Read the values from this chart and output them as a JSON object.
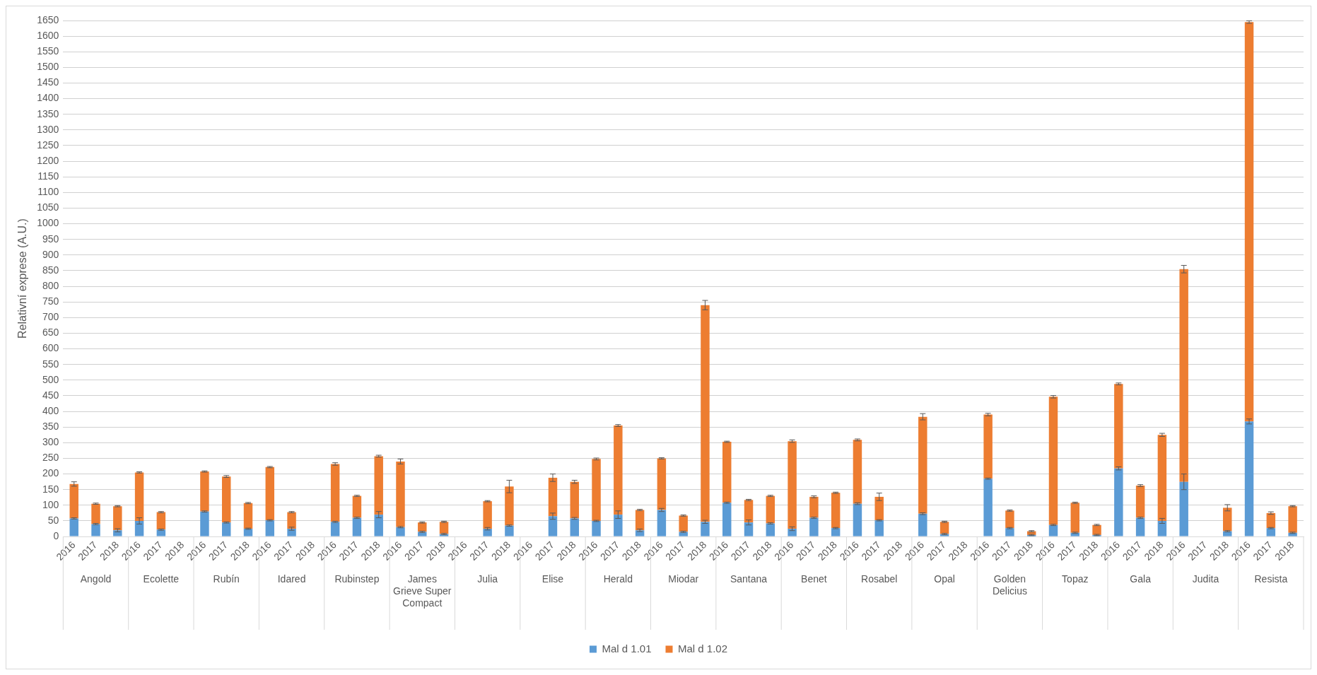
{
  "chart_data": {
    "type": "bar",
    "stacked": true,
    "ylabel": "Relativní exprese (A.U.)",
    "categories": [
      "2016",
      "2017",
      "2018",
      "2016",
      "2017",
      "2018",
      "2016",
      "2017",
      "2018",
      "2016",
      "2017",
      "2018",
      "2016",
      "2017",
      "2018",
      "2016",
      "2017",
      "2018",
      "2016",
      "2017",
      "2018",
      "2016",
      "2017",
      "2018",
      "2016",
      "2017",
      "2018",
      "2016",
      "2017",
      "2018",
      "2016",
      "2017",
      "2018",
      "2016",
      "2017",
      "2018",
      "2016",
      "2017",
      "2018",
      "2016",
      "2017",
      "2018",
      "2016",
      "2017",
      "2018",
      "2016",
      "2017",
      "2018",
      "2016",
      "2017",
      "2018",
      "2016",
      "2017",
      "2018",
      "2016",
      "2017",
      "2018"
    ],
    "annotations": [
      "Angold",
      "Ecolette",
      "Rubín",
      "Idared",
      "Rubinstep",
      "James Grieve Super Compact",
      "Julia",
      "Elise",
      "Herald",
      "Miodar",
      "Santana",
      "Benet",
      "Rosabel",
      "Opal",
      "Golden Delicius",
      "Topaz",
      "Gala",
      "Judita",
      "Resista"
    ],
    "series": [
      {
        "name": "Mal d 1.01",
        "color": "#5b9bd5",
        "values": [
          58,
          40,
          20,
          50,
          22,
          null,
          80,
          45,
          25,
          52,
          25,
          null,
          47,
          60,
          70,
          30,
          15,
          8,
          null,
          25,
          35,
          null,
          65,
          58,
          50,
          70,
          20,
          85,
          15,
          47,
          108,
          45,
          42,
          25,
          60,
          27,
          105,
          52,
          null,
          73,
          8,
          null,
          185,
          27,
          5,
          37,
          12,
          5,
          218,
          60,
          50,
          175,
          null,
          17,
          368,
          27,
          12
        ],
        "errors": [
          2,
          2,
          5,
          10,
          2,
          null,
          2,
          2,
          2,
          2,
          5,
          null,
          2,
          2,
          10,
          2,
          2,
          2,
          null,
          4,
          2,
          null,
          10,
          3,
          2,
          12,
          4,
          5,
          2,
          5,
          2,
          8,
          2,
          6,
          2,
          2,
          3,
          2,
          null,
          3,
          2,
          null,
          2,
          2,
          2,
          2,
          2,
          2,
          5,
          2,
          8,
          25,
          null,
          2,
          8,
          2,
          2
        ]
      },
      {
        "name": "Mal d 1.02",
        "color": "#ed7d31",
        "values": [
          110,
          65,
          77,
          155,
          56,
          null,
          128,
          147,
          82,
          170,
          53,
          null,
          185,
          70,
          187,
          210,
          30,
          39,
          null,
          88,
          125,
          null,
          123,
          117,
          198,
          285,
          65,
          165,
          52,
          693,
          195,
          72,
          88,
          280,
          67,
          113,
          204,
          75,
          null,
          310,
          39,
          null,
          205,
          56,
          12,
          410,
          96,
          32,
          270,
          103,
          275,
          680,
          null,
          75,
          1277,
          48,
          85
        ],
        "errors": [
          7,
          2,
          2,
          2,
          2,
          null,
          2,
          3,
          2,
          2,
          2,
          null,
          4,
          2,
          3,
          8,
          2,
          2,
          null,
          2,
          20,
          null,
          12,
          5,
          3,
          3,
          2,
          2,
          2,
          15,
          2,
          2,
          2,
          4,
          3,
          2,
          3,
          12,
          null,
          10,
          2,
          null,
          4,
          2,
          2,
          4,
          2,
          2,
          3,
          3,
          5,
          12,
          null,
          10,
          4,
          4,
          2
        ]
      }
    ],
    "ylim": [
      0,
      1650
    ],
    "yticks": [
      0,
      50,
      100,
      150,
      200,
      250,
      300,
      350,
      400,
      450,
      500,
      550,
      600,
      650,
      700,
      750,
      800,
      850,
      900,
      950,
      1000,
      1050,
      1100,
      1150,
      1200,
      1250,
      1300,
      1350,
      1400,
      1450,
      1500,
      1550,
      1600,
      1650
    ],
    "grid": "y",
    "legend": "bottom"
  }
}
